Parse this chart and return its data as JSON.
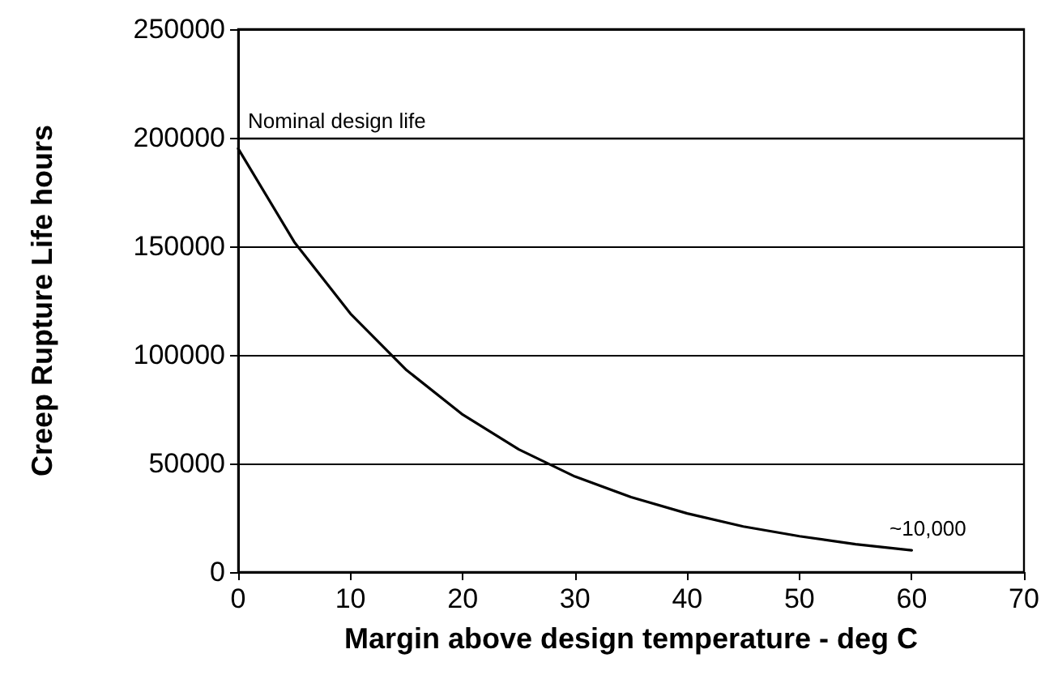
{
  "chart_data": {
    "type": "line",
    "xlabel": "Margin above design temperature - deg C",
    "ylabel": "Creep Rupture Life hours",
    "x": [
      0,
      5,
      10,
      15,
      20,
      25,
      30,
      35,
      40,
      45,
      50,
      55,
      60
    ],
    "series": [
      {
        "color": "#000000",
        "values": [
          195000,
          152000,
          119000,
          93000,
          72500,
          56500,
          44000,
          34500,
          27000,
          21000,
          16500,
          12800,
          10000
        ]
      }
    ],
    "xlim": [
      0,
      70
    ],
    "xticks": [
      0,
      10,
      20,
      30,
      40,
      50,
      60,
      70
    ],
    "ylim": [
      0,
      250000
    ],
    "yticks": [
      0,
      50000,
      100000,
      150000,
      200000,
      250000
    ],
    "grid": "y",
    "marker": "none",
    "line_style": "solid",
    "ref_lines": [
      {
        "axis": "y",
        "value": 200000,
        "label": "Nominal design life",
        "color": "#000000"
      }
    ],
    "annotations": [
      {
        "text": "~10,000",
        "x": 60,
        "y": 10000
      }
    ]
  }
}
